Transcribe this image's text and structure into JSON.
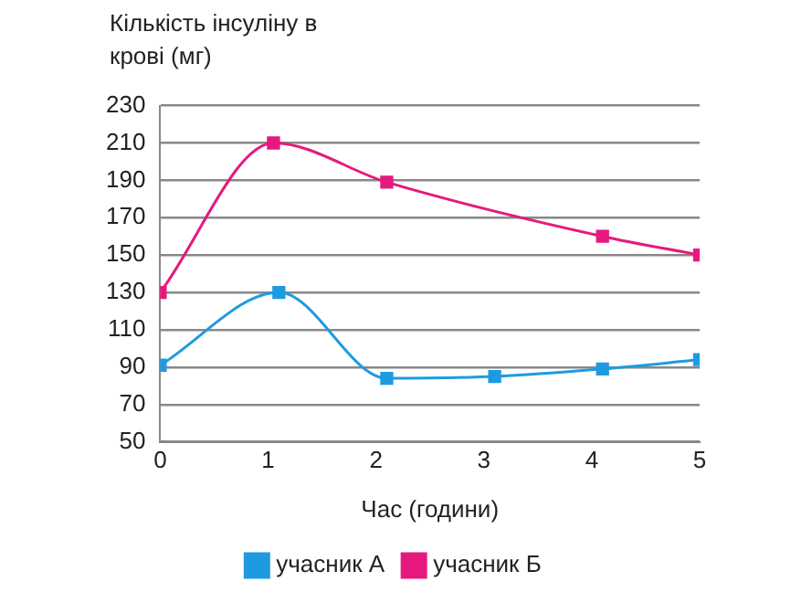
{
  "chart_data": {
    "type": "line",
    "ylabel": "Кількість інсуліну в крові (мг)",
    "xlabel": "Час (години)",
    "xlim": [
      0,
      5
    ],
    "xticks": [
      0,
      1,
      2,
      3,
      4,
      5
    ],
    "ylim": [
      50,
      230
    ],
    "yticks": [
      50,
      70,
      90,
      110,
      130,
      150,
      170,
      190,
      210,
      230
    ],
    "series": [
      {
        "name": "учасник А",
        "color": "#1e9be0",
        "x": [
          0,
          1.1,
          2.1,
          3.1,
          4.1,
          5
        ],
        "values": [
          91,
          130,
          84,
          85,
          89,
          94
        ]
      },
      {
        "name": "учасник Б",
        "color": "#e6197f",
        "x": [
          0,
          1.05,
          2.1,
          4.1,
          5
        ],
        "values": [
          130,
          210,
          189,
          160,
          150
        ]
      }
    ],
    "grid": "y",
    "legend": "bottom",
    "marker": "square",
    "line_style": "solid"
  }
}
